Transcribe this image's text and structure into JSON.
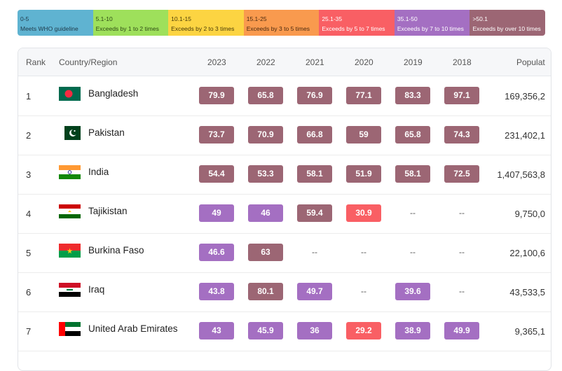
{
  "legend": [
    {
      "range": "0-5",
      "text": "Meets WHO guideline",
      "color": "#5fb3d1",
      "fg": "#1f3a4a"
    },
    {
      "range": "5.1-10",
      "text": "Exceeds by 1 to 2 times",
      "color": "#9ee05b",
      "fg": "#2e4a15"
    },
    {
      "range": "10.1-15",
      "text": "Exceeds by 2 to 3 times",
      "color": "#fcd442",
      "fg": "#4a3c08"
    },
    {
      "range": "15.1-25",
      "text": "Exceeds by 3 to 5 times",
      "color": "#f99a4e",
      "fg": "#4a2a10"
    },
    {
      "range": "25.1-35",
      "text": "Exceeds by 5 to 7 times",
      "color": "#f95f64",
      "fg": "#ffffff"
    },
    {
      "range": "35.1-50",
      "text": "Exceeds by 7 to 10 times",
      "color": "#a46fc2",
      "fg": "#ffffff"
    },
    {
      "range": ">50.1",
      "text": "Exceeds by over 10 times",
      "color": "#9c6674",
      "fg": "#ffffff"
    }
  ],
  "colors": {
    "c6": "#a46fc2",
    "c5": "#f95f64",
    "c7": "#9c6674"
  },
  "table": {
    "headers": {
      "rank": "Rank",
      "country": "Country/Region",
      "y2023": "2023",
      "y2022": "2022",
      "y2021": "2021",
      "y2020": "2020",
      "y2019": "2019",
      "y2018": "2018",
      "population": "Populat"
    },
    "rows": [
      {
        "rank": "1",
        "country": "Bangladesh",
        "flag": "bangladesh",
        "values": [
          "79.9",
          "65.8",
          "76.9",
          "77.1",
          "83.3",
          "97.1"
        ],
        "levels": [
          "c7",
          "c7",
          "c7",
          "c7",
          "c7",
          "c7"
        ],
        "population": "169,356,2"
      },
      {
        "rank": "2",
        "country": "Pakistan",
        "flag": "pakistan",
        "values": [
          "73.7",
          "70.9",
          "66.8",
          "59",
          "65.8",
          "74.3"
        ],
        "levels": [
          "c7",
          "c7",
          "c7",
          "c7",
          "c7",
          "c7"
        ],
        "population": "231,402,1"
      },
      {
        "rank": "3",
        "country": "India",
        "flag": "india",
        "values": [
          "54.4",
          "53.3",
          "58.1",
          "51.9",
          "58.1",
          "72.5"
        ],
        "levels": [
          "c7",
          "c7",
          "c7",
          "c7",
          "c7",
          "c7"
        ],
        "population": "1,407,563,8"
      },
      {
        "rank": "4",
        "country": "Tajikistan",
        "flag": "tajikistan",
        "values": [
          "49",
          "46",
          "59.4",
          "30.9",
          "--",
          "--"
        ],
        "levels": [
          "c6",
          "c6",
          "c7",
          "c5",
          "",
          ""
        ],
        "population": "9,750,0"
      },
      {
        "rank": "5",
        "country": "Burkina Faso",
        "flag": "burkina",
        "values": [
          "46.6",
          "63",
          "--",
          "--",
          "--",
          "--"
        ],
        "levels": [
          "c6",
          "c7",
          "",
          "",
          "",
          ""
        ],
        "population": "22,100,6"
      },
      {
        "rank": "6",
        "country": "Iraq",
        "flag": "iraq",
        "values": [
          "43.8",
          "80.1",
          "49.7",
          "--",
          "39.6",
          "--"
        ],
        "levels": [
          "c6",
          "c7",
          "c6",
          "",
          "c6",
          ""
        ],
        "population": "43,533,5"
      },
      {
        "rank": "7",
        "country": "United Arab Emirates",
        "flag": "uae",
        "values": [
          "43",
          "45.9",
          "36",
          "29.2",
          "38.9",
          "49.9"
        ],
        "levels": [
          "c6",
          "c6",
          "c6",
          "c5",
          "c6",
          "c6"
        ],
        "population": "9,365,1"
      }
    ]
  }
}
